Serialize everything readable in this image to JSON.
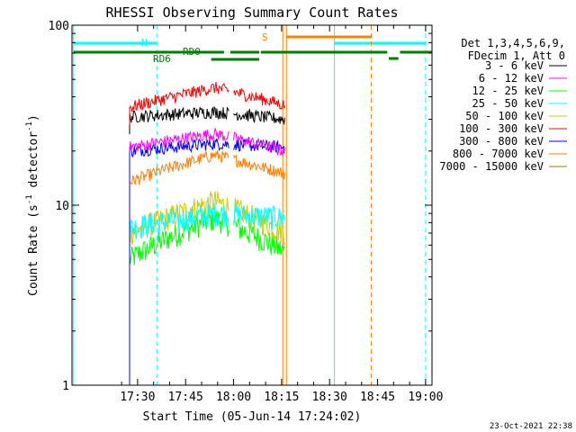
{
  "chart_data": {
    "type": "line",
    "title": "RHESSI Observing Summary Count Rates",
    "xlabel": "Start Time (05-Jun-14 17:24:02)",
    "ylabel_main": "Count Rate (s",
    "ylabel_sup1": "-1",
    "ylabel_mid": " detector",
    "ylabel_sup2": "-1",
    "ylabel_end": ")",
    "yscale": "log",
    "ylim": [
      1,
      100
    ],
    "xlim_min": [
      -14.5,
      98
    ],
    "x_ticks": [
      {
        "label": "17:30",
        "m": 6
      },
      {
        "label": "17:45",
        "m": 21
      },
      {
        "label": "18:00",
        "m": 36
      },
      {
        "label": "18:15",
        "m": 51
      },
      {
        "label": "18:30",
        "m": 66
      },
      {
        "label": "18:45",
        "m": 81
      },
      {
        "label": "19:00",
        "m": 96
      }
    ],
    "y_ticks": [
      {
        "label": "1",
        "v": 1
      },
      {
        "label": "10",
        "v": 10
      },
      {
        "label": "100",
        "v": 100
      }
    ],
    "legend_header": [
      "Det 1,3,4,5,6,9,",
      "FDecim 1, Att 0"
    ],
    "series": [
      {
        "name": "3 - 6 keV",
        "color": "#000000"
      },
      {
        "name": "6 - 12 keV",
        "color": "#ff00ff"
      },
      {
        "name": "12 - 25 keV",
        "color": "#00ff00"
      },
      {
        "name": "25 - 50 keV",
        "color": "#00ffff"
      },
      {
        "name": "50 - 100 keV",
        "color": "#cccc00"
      },
      {
        "name": "100 - 300 keV",
        "color": "#ff0000"
      },
      {
        "name": "300 - 800 keV",
        "color": "#0000ff"
      },
      {
        "name": "800 - 7000 keV",
        "color": "#ff8000"
      },
      {
        "name": "7000 - 15000 keV",
        "color": "#aa7700"
      }
    ],
    "levels": [
      {
        "color": "#00ff00",
        "start": 5.0,
        "peak": 8.5,
        "end": 5.5
      },
      {
        "color": "#cccc00",
        "start": 7.0,
        "peak": 10.5,
        "end": 7.0
      },
      {
        "color": "#00ffff",
        "start": 7.5,
        "peak": 9.0,
        "end": 8.5
      },
      {
        "color": "#ff8000",
        "start": 13.5,
        "peak": 19.0,
        "end": 15.0
      },
      {
        "color": "#0000ff",
        "start": 20.0,
        "peak": 22.0,
        "end": 21.0
      },
      {
        "color": "#ff00ff",
        "start": 21.0,
        "peak": 25.0,
        "end": 20.0
      },
      {
        "color": "#000000",
        "start": 31.0,
        "peak": 33.0,
        "end": 30.0
      },
      {
        "color": "#ff0000",
        "start": 35.0,
        "peak": 45.0,
        "end": 36.0
      }
    ],
    "data_start_min": 3.5,
    "data_end_min": 52.0,
    "gap_min": [
      34.5,
      36.0
    ],
    "annotations": {
      "flag_N": "N",
      "flag_S": "S",
      "flag_RD0": "RD0",
      "flag_RD6": "RD6"
    },
    "saa_intervals": [
      {
        "start_min": -14.0,
        "end_min": 12.0
      },
      {
        "start_min": 67.5,
        "end_min": 96.0
      }
    ],
    "night_intervals": [
      {
        "start_min": 52.5,
        "end_min": 79.0
      }
    ],
    "decimation_intervals": [
      {
        "label": "RD0",
        "start_min": -14.0,
        "end_min": 44.0
      },
      {
        "label": "RD6",
        "start_min": 29.0,
        "end_min": 44.0
      },
      {
        "label": "",
        "start_min": 44.0,
        "end_min": 98.0
      }
    ],
    "footer_date": "23-Oct-2021 22:38"
  }
}
